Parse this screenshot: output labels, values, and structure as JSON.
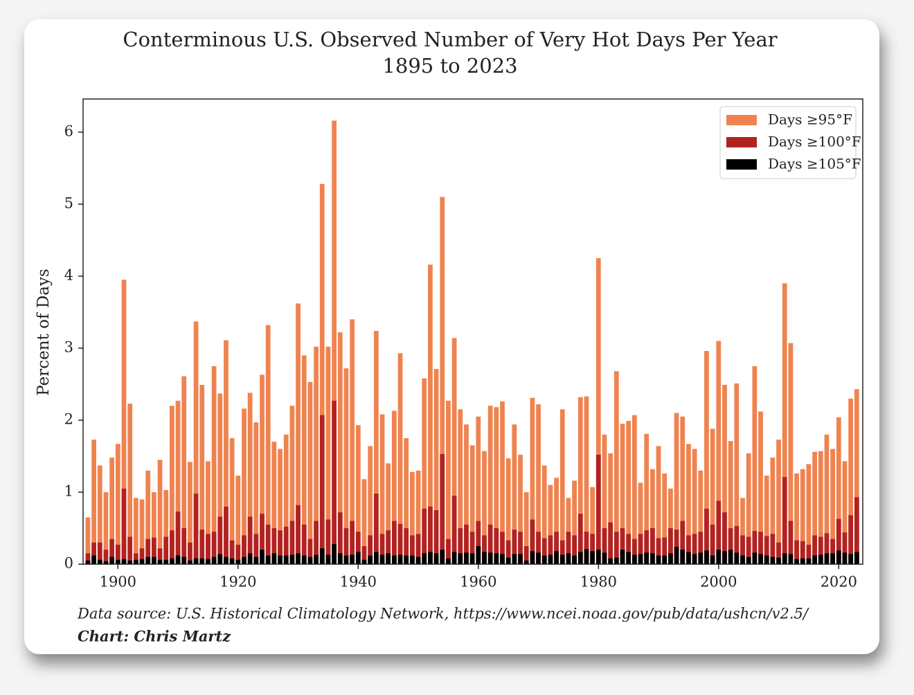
{
  "chart_data": {
    "type": "bar",
    "title": "Conterminous U.S. Observed Number of Very Hot Days Per Year",
    "subtitle": "1895 to 2023",
    "y_label": "Percent of Days",
    "source": "Data source: U.S. Historical Climatology Network, https://www.ncei.noaa.gov/pub/data/ushcn/v2.5/",
    "credit": "Chart: Chris Martz",
    "legend": "upper right",
    "grid": false,
    "xlim": [
      1894.2,
      2024.0
    ],
    "xticks": [
      1900,
      1920,
      1940,
      1960,
      1980,
      2000,
      2020
    ],
    "ylim": [
      0,
      6.46
    ],
    "yticks": [
      0,
      1,
      2,
      3,
      4,
      5,
      6
    ],
    "x": [
      1895,
      1896,
      1897,
      1898,
      1899,
      1900,
      1901,
      1902,
      1903,
      1904,
      1905,
      1906,
      1907,
      1908,
      1909,
      1910,
      1911,
      1912,
      1913,
      1914,
      1915,
      1916,
      1917,
      1918,
      1919,
      1920,
      1921,
      1922,
      1923,
      1924,
      1925,
      1926,
      1927,
      1928,
      1929,
      1930,
      1931,
      1932,
      1933,
      1934,
      1935,
      1936,
      1937,
      1938,
      1939,
      1940,
      1941,
      1942,
      1943,
      1944,
      1945,
      1946,
      1947,
      1948,
      1949,
      1950,
      1951,
      1952,
      1953,
      1954,
      1955,
      1956,
      1957,
      1958,
      1959,
      1960,
      1961,
      1962,
      1963,
      1964,
      1965,
      1966,
      1967,
      1968,
      1969,
      1970,
      1971,
      1972,
      1973,
      1974,
      1975,
      1976,
      1977,
      1978,
      1979,
      1980,
      1981,
      1982,
      1983,
      1984,
      1985,
      1986,
      1987,
      1988,
      1989,
      1990,
      1991,
      1992,
      1993,
      1994,
      1995,
      1996,
      1997,
      1998,
      1999,
      2000,
      2001,
      2002,
      2003,
      2004,
      2005,
      2006,
      2007,
      2008,
      2009,
      2010,
      2011,
      2012,
      2013,
      2014,
      2015,
      2016,
      2017,
      2018,
      2019,
      2020,
      2021,
      2022,
      2023
    ],
    "series": [
      {
        "name": "Days ≥95°F",
        "color": "#ef8350",
        "values": [
          0.65,
          1.73,
          1.37,
          1.0,
          1.48,
          1.67,
          3.95,
          2.23,
          0.92,
          0.9,
          1.3,
          1.0,
          1.45,
          1.03,
          2.2,
          2.27,
          2.61,
          1.42,
          3.37,
          2.49,
          1.43,
          2.75,
          2.37,
          3.11,
          1.75,
          1.23,
          2.16,
          2.38,
          1.97,
          2.63,
          3.32,
          1.7,
          1.6,
          1.8,
          2.2,
          3.62,
          2.9,
          2.53,
          3.02,
          5.28,
          3.02,
          6.16,
          3.22,
          2.72,
          3.4,
          1.93,
          1.18,
          1.64,
          3.24,
          2.08,
          1.4,
          2.13,
          2.93,
          1.75,
          1.28,
          1.3,
          2.58,
          4.16,
          2.71,
          5.1,
          2.27,
          3.14,
          2.15,
          1.94,
          1.65,
          2.05,
          1.57,
          2.2,
          2.18,
          2.26,
          1.47,
          1.94,
          1.52,
          1.0,
          2.31,
          2.22,
          1.37,
          1.1,
          1.2,
          2.15,
          0.92,
          1.16,
          2.32,
          2.33,
          1.07,
          4.25,
          1.8,
          1.54,
          2.68,
          1.95,
          1.99,
          2.07,
          1.13,
          1.81,
          1.32,
          1.64,
          1.26,
          1.05,
          2.1,
          2.05,
          1.67,
          1.6,
          1.3,
          2.96,
          1.88,
          3.1,
          2.49,
          1.71,
          2.51,
          0.92,
          1.54,
          2.75,
          2.12,
          1.23,
          1.48,
          1.73,
          3.9,
          3.07,
          1.26,
          1.32,
          1.39,
          1.56,
          1.57,
          1.8,
          1.6,
          2.04,
          1.43,
          2.3,
          2.43
        ]
      },
      {
        "name": "Days ≥100°F",
        "color": "#b22222",
        "values": [
          0.15,
          0.3,
          0.3,
          0.2,
          0.35,
          0.27,
          1.05,
          0.38,
          0.15,
          0.22,
          0.35,
          0.37,
          0.22,
          0.38,
          0.47,
          0.73,
          0.5,
          0.3,
          0.98,
          0.48,
          0.42,
          0.45,
          0.66,
          0.8,
          0.33,
          0.27,
          0.4,
          0.66,
          0.42,
          0.7,
          0.55,
          0.5,
          0.47,
          0.52,
          0.6,
          0.82,
          0.55,
          0.35,
          0.6,
          2.07,
          0.62,
          2.27,
          0.72,
          0.5,
          0.6,
          0.45,
          0.25,
          0.4,
          0.98,
          0.42,
          0.47,
          0.6,
          0.56,
          0.5,
          0.4,
          0.42,
          0.77,
          0.8,
          0.75,
          1.53,
          0.35,
          0.95,
          0.5,
          0.55,
          0.45,
          0.6,
          0.4,
          0.55,
          0.5,
          0.45,
          0.33,
          0.48,
          0.45,
          0.25,
          0.62,
          0.45,
          0.36,
          0.4,
          0.45,
          0.33,
          0.45,
          0.4,
          0.7,
          0.45,
          0.42,
          1.52,
          0.5,
          0.58,
          0.45,
          0.5,
          0.42,
          0.35,
          0.42,
          0.47,
          0.5,
          0.36,
          0.37,
          0.5,
          0.48,
          0.6,
          0.4,
          0.42,
          0.45,
          0.77,
          0.55,
          0.88,
          0.72,
          0.5,
          0.53,
          0.4,
          0.38,
          0.46,
          0.45,
          0.39,
          0.42,
          0.3,
          1.21,
          0.6,
          0.33,
          0.32,
          0.27,
          0.4,
          0.38,
          0.43,
          0.35,
          0.63,
          0.44,
          0.68,
          0.93
        ]
      },
      {
        "name": "Days ≥105°F",
        "color": "#000000",
        "values": [
          0.05,
          0.12,
          0.06,
          0.04,
          0.1,
          0.06,
          0.07,
          0.05,
          0.06,
          0.07,
          0.1,
          0.1,
          0.06,
          0.06,
          0.08,
          0.12,
          0.1,
          0.05,
          0.08,
          0.08,
          0.07,
          0.1,
          0.14,
          0.1,
          0.08,
          0.06,
          0.1,
          0.15,
          0.1,
          0.2,
          0.12,
          0.15,
          0.12,
          0.12,
          0.13,
          0.15,
          0.12,
          0.1,
          0.13,
          0.22,
          0.13,
          0.28,
          0.15,
          0.12,
          0.13,
          0.17,
          0.06,
          0.12,
          0.17,
          0.13,
          0.15,
          0.12,
          0.13,
          0.12,
          0.12,
          0.1,
          0.15,
          0.17,
          0.15,
          0.2,
          0.08,
          0.17,
          0.15,
          0.16,
          0.15,
          0.25,
          0.17,
          0.16,
          0.15,
          0.14,
          0.09,
          0.14,
          0.14,
          0.05,
          0.18,
          0.16,
          0.12,
          0.13,
          0.18,
          0.13,
          0.15,
          0.12,
          0.17,
          0.21,
          0.18,
          0.2,
          0.16,
          0.08,
          0.09,
          0.2,
          0.17,
          0.13,
          0.14,
          0.16,
          0.15,
          0.12,
          0.12,
          0.15,
          0.24,
          0.2,
          0.17,
          0.14,
          0.16,
          0.19,
          0.12,
          0.2,
          0.18,
          0.2,
          0.16,
          0.12,
          0.1,
          0.16,
          0.14,
          0.12,
          0.1,
          0.09,
          0.15,
          0.14,
          0.07,
          0.08,
          0.08,
          0.12,
          0.13,
          0.15,
          0.15,
          0.19,
          0.16,
          0.14,
          0.17
        ]
      }
    ]
  }
}
